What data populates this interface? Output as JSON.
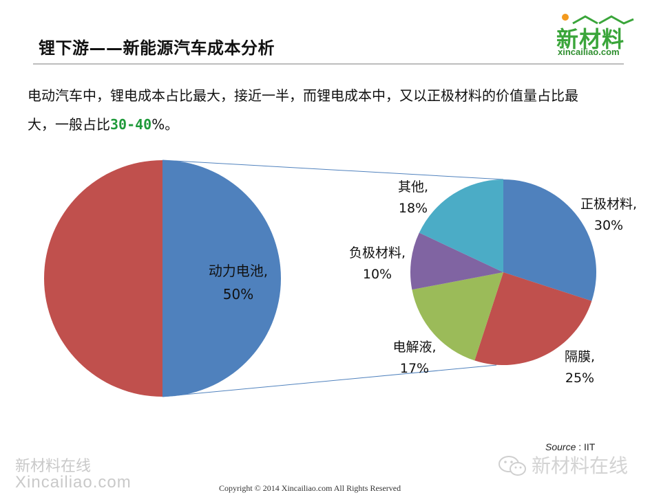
{
  "header": {
    "title": "锂下游——新能源汽车成本分析",
    "logo_text": "新材料",
    "logo_url": "xincailiao.com"
  },
  "intro": {
    "line1": "电动汽车中，锂电成本占比最大，接近一半，而锂电成本中，又以正极材料的价值量占比最",
    "line2_prefix": "大，一般占比",
    "highlight": "30-40",
    "line2_suffix": "%。",
    "highlight_color": "#1f9a3a"
  },
  "chart_data": [
    {
      "type": "pie",
      "title": "",
      "slices": [
        {
          "label": "动力电池",
          "value": 50,
          "color": "#4f81bd",
          "show_label": true
        },
        {
          "label": "",
          "value": 50,
          "color": "#c0504d",
          "show_label": false
        }
      ]
    },
    {
      "type": "pie",
      "title": "",
      "exploded_from": "动力电池",
      "slices": [
        {
          "label": "正极材料",
          "value": 30,
          "color": "#4f81bd"
        },
        {
          "label": "隔膜",
          "value": 25,
          "color": "#c0504d"
        },
        {
          "label": "电解液",
          "value": 17,
          "color": "#9bbb59"
        },
        {
          "label": "负极材料",
          "value": 10,
          "color": "#8064a2"
        },
        {
          "label": "其他",
          "value": 18,
          "color": "#4bacc6"
        }
      ]
    }
  ],
  "footer": {
    "source_label": "Source",
    "source_value": " : IIT",
    "watermark_cn": "新材料在线",
    "watermark_en": "Xincailiao.com",
    "watermark_right": "新材料在线",
    "copyright": "Copyright © 2014   Xincailiao.com    All Rights Reserved"
  }
}
